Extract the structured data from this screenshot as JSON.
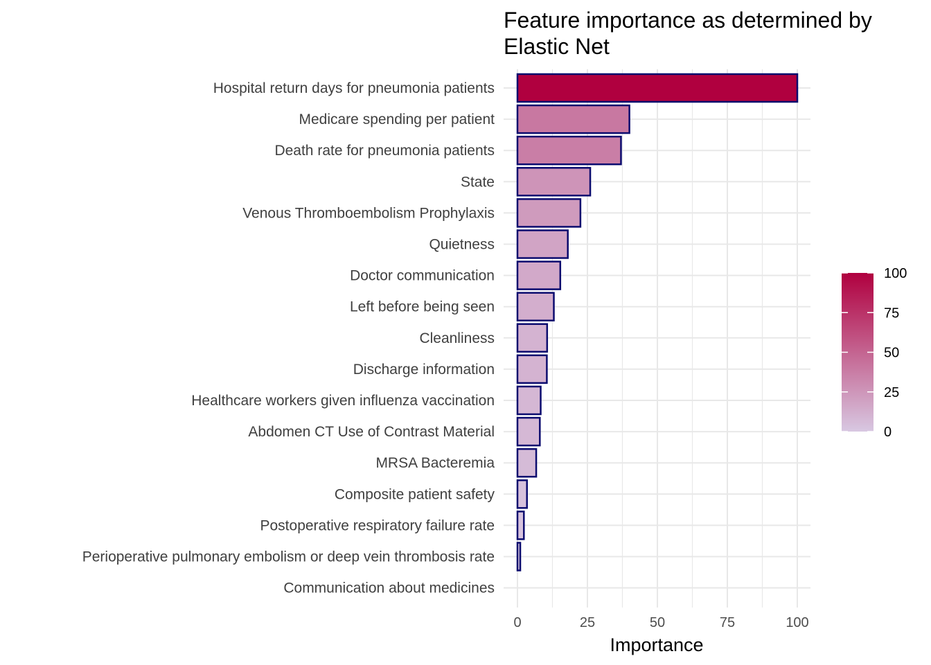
{
  "chart_data": {
    "type": "bar",
    "orientation": "horizontal",
    "title": "Feature importance as determined by Elastic Net",
    "title_lines": [
      "Feature importance as determined by",
      "Elastic Net"
    ],
    "xlabel": "Importance",
    "ylabel": "",
    "xlim": [
      0,
      100
    ],
    "x_ticks": [
      "0",
      "25",
      "50",
      "75",
      "100"
    ],
    "categories": [
      "Hospital return days for pneumonia patients",
      "Medicare spending per patient",
      "Death rate for pneumonia patients",
      "State",
      "Venous Thromboembolism Prophylaxis",
      "Quietness",
      "Doctor communication",
      "Left before being seen",
      "Cleanliness",
      "Discharge information",
      "Healthcare workers given influenza vaccination",
      "Abdomen CT Use of Contrast Material",
      "MRSA Bacteremia",
      "Composite patient safety",
      "Postoperative respiratory failure rate",
      "Perioperative pulmonary embolism or deep vein thrombosis rate",
      "Communication about medicines"
    ],
    "values": [
      100,
      40,
      37,
      26,
      22.5,
      18,
      15.3,
      13,
      10.6,
      10.5,
      8.3,
      8,
      6.7,
      3.4,
      2.3,
      1,
      0
    ],
    "grid": true,
    "legend": {
      "position": "right",
      "type": "colorbar",
      "ticks": [
        "100",
        "75",
        "50",
        "25",
        "0"
      ],
      "low_color": "#d8c8e2",
      "high_color": "#b0003f"
    },
    "colors": {
      "bar_outline": "#0b0b6e",
      "grid": "#e8e8e8",
      "fill_low": "#d8c8e2",
      "fill_high": "#b0003f"
    }
  }
}
